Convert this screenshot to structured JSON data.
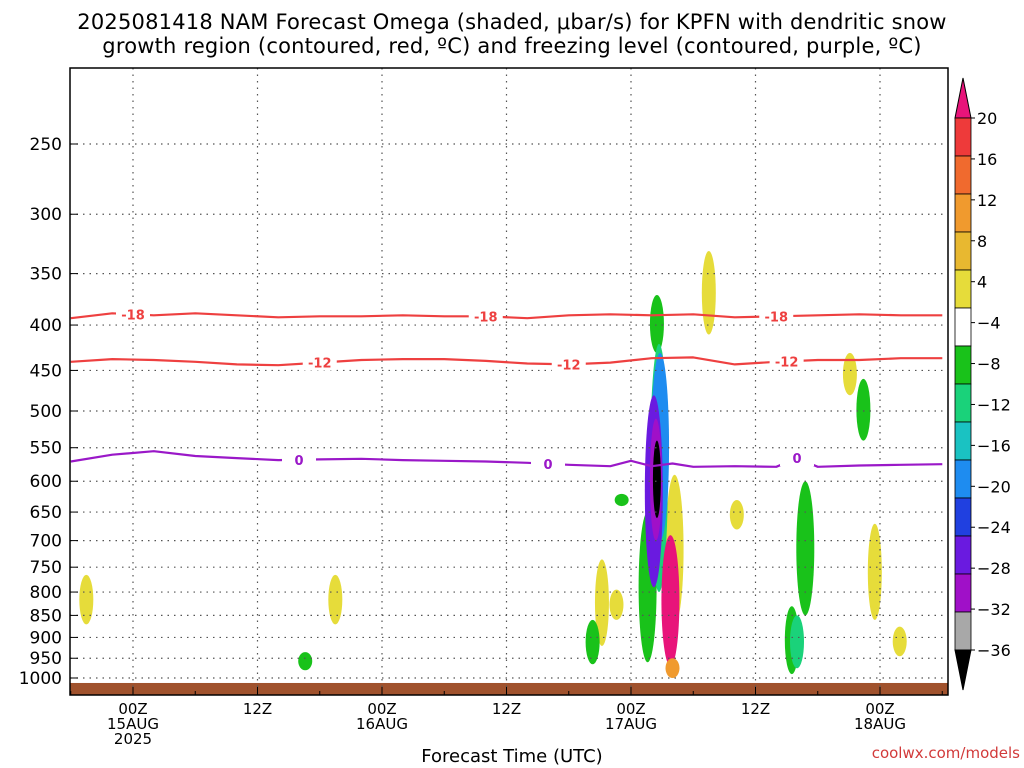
{
  "title_line1": "2025081418 NAM Forecast Omega (shaded, μbar/s) for KPFN with dendritic snow",
  "title_line2": "growth region (contoured, red, ºC) and freezing level (contoured, purple, ºC)",
  "credit": "coolwx.com/models",
  "chart_data": {
    "type": "heatmap",
    "title": "2025081418 NAM Forecast Omega (shaded, μbar/s) for KPFN with dendritic snow growth region (contoured, red, ºC) and freezing level (contoured, purple, ºC)",
    "xlabel": "Forecast Time (UTC)",
    "ylabel": "",
    "x_unit": "hours from 2025-08-14 18Z",
    "xlim": [
      0,
      84
    ],
    "ylim": [
      1050,
      200
    ],
    "y_scale": "log",
    "grid": true,
    "x_ticks": [
      {
        "x": 6,
        "l1": "00Z",
        "l2": "15AUG",
        "l3": "2025"
      },
      {
        "x": 18,
        "l1": "12Z",
        "l2": "",
        "l3": ""
      },
      {
        "x": 30,
        "l1": "00Z",
        "l2": "16AUG",
        "l3": ""
      },
      {
        "x": 42,
        "l1": "12Z",
        "l2": "",
        "l3": ""
      },
      {
        "x": 54,
        "l1": "00Z",
        "l2": "17AUG",
        "l3": ""
      },
      {
        "x": 66,
        "l1": "12Z",
        "l2": "",
        "l3": ""
      },
      {
        "x": 78,
        "l1": "00Z",
        "l2": "18AUG",
        "l3": ""
      }
    ],
    "y_ticks": [
      250,
      300,
      350,
      400,
      450,
      500,
      550,
      600,
      650,
      700,
      750,
      800,
      850,
      900,
      950,
      1000
    ],
    "colorbar": {
      "labels": [
        "20",
        "16",
        "12",
        "8",
        "4",
        "−4",
        "−8",
        "−12",
        "−16",
        "−20",
        "−24",
        "−28",
        "−32",
        "−36"
      ],
      "colors": [
        "#e8147a",
        "#ee3a3a",
        "#f06a2e",
        "#f09a2e",
        "#e8b830",
        "#e6dc3a",
        "#ffffff",
        "#19c21a",
        "#1ad27a",
        "#1ac2c2",
        "#1e8cf0",
        "#2040e0",
        "#6a1ae0",
        "#a010c8",
        "#a8a8a8",
        "#000000"
      ]
    },
    "series": [
      {
        "name": "-18",
        "kind": "contour",
        "color": "#ee4040",
        "x": [
          0,
          4,
          8,
          12,
          16,
          20,
          24,
          28,
          32,
          36,
          40,
          44,
          48,
          52,
          56,
          60,
          64,
          68,
          72,
          76,
          80,
          84
        ],
        "y": [
          393,
          388,
          390,
          388,
          390,
          392,
          391,
          391,
          390,
          391,
          391,
          393,
          390,
          389,
          390,
          389,
          392,
          391,
          390,
          389,
          390,
          390
        ],
        "labels_x": [
          6,
          40,
          68
        ]
      },
      {
        "name": "-12",
        "kind": "contour",
        "color": "#ee4040",
        "x": [
          0,
          4,
          8,
          12,
          16,
          20,
          24,
          28,
          32,
          36,
          40,
          44,
          48,
          52,
          56,
          60,
          64,
          68,
          72,
          76,
          80,
          84
        ],
        "y": [
          440,
          437,
          438,
          440,
          443,
          444,
          441,
          438,
          437,
          437,
          439,
          442,
          443,
          441,
          436,
          435,
          443,
          440,
          438,
          438,
          436,
          436
        ],
        "labels_x": [
          24,
          48,
          69
        ]
      },
      {
        "name": "0",
        "kind": "contour",
        "color": "#9a18c8",
        "x": [
          0,
          4,
          8,
          12,
          16,
          20,
          24,
          28,
          32,
          36,
          40,
          44,
          48,
          52,
          54,
          56,
          58,
          60,
          64,
          68,
          70,
          72,
          76,
          80,
          84
        ],
        "y": [
          570,
          560,
          555,
          562,
          565,
          568,
          567,
          566,
          568,
          569,
          570,
          572,
          575,
          577,
          569,
          577,
          573,
          578,
          577,
          578,
          565,
          578,
          576,
          575,
          574
        ],
        "labels_x": [
          22,
          46,
          70
        ]
      }
    ],
    "shading": [
      {
        "value": 6,
        "color": "#e6dc3a",
        "blobs": [
          [
            1.5,
            765,
            870
          ],
          [
            25.5,
            765,
            870
          ],
          [
            51.2,
            735,
            920
          ],
          [
            52.6,
            795,
            860
          ],
          [
            58.2,
            590,
            870
          ],
          [
            61.5,
            330,
            410
          ],
          [
            64.2,
            630,
            680
          ],
          [
            75.1,
            430,
            480
          ],
          [
            77.5,
            670,
            860
          ],
          [
            79.9,
            875,
            945
          ]
        ]
      },
      {
        "value": -6,
        "color": "#19c21a",
        "blobs": [
          [
            22.6,
            935,
            980
          ],
          [
            50.3,
            860,
            965
          ],
          [
            53.1,
            620,
            640
          ],
          [
            55.6,
            650,
            960
          ],
          [
            56.5,
            370,
            430
          ],
          [
            69.5,
            830,
            990
          ],
          [
            70.8,
            600,
            850
          ],
          [
            76.4,
            460,
            540
          ]
        ]
      },
      {
        "value": -10,
        "color": "#1ad27a",
        "blobs": [
          [
            56.7,
            420,
            800
          ],
          [
            70.0,
            850,
            975
          ]
        ]
      },
      {
        "value": -16,
        "color": "#1e8cf0",
        "blobs": [
          [
            56.8,
            430,
            700
          ]
        ]
      },
      {
        "value": -26,
        "color": "#6a1ae0",
        "blobs": [
          [
            56.2,
            480,
            790
          ]
        ]
      },
      {
        "value": -30,
        "color": "#a010c8",
        "blobs": [
          [
            56.4,
            510,
            700
          ]
        ]
      },
      {
        "value": -36,
        "color": "#000000",
        "blobs": [
          [
            56.5,
            540,
            660
          ]
        ]
      },
      {
        "value": 16,
        "color": "#e8147a",
        "blobs": [
          [
            57.8,
            690,
            970
          ]
        ]
      },
      {
        "value": 10,
        "color": "#f09a2e",
        "blobs": [
          [
            58.0,
            950,
            1000
          ]
        ]
      }
    ],
    "terrain_bottom": 1013
  }
}
